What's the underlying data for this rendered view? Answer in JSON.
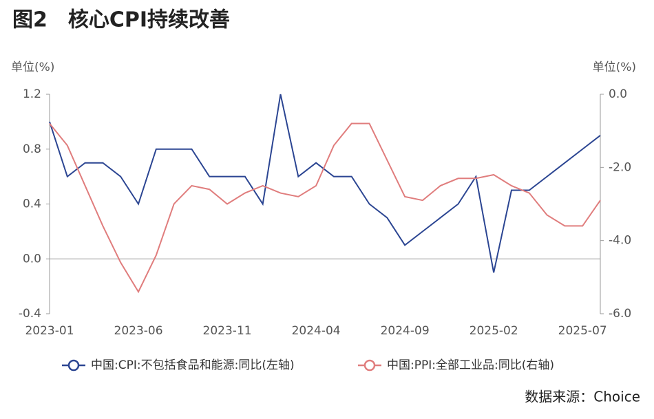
{
  "chart_data": {
    "type": "line",
    "title": "图2　核心CPI持续改善",
    "ylabel": "单位(%)",
    "y2label": "单位(%)",
    "source": "数据来源：Choice",
    "categories": [
      "2023-01",
      null,
      null,
      null,
      null,
      "2023-06",
      null,
      null,
      null,
      null,
      "2023-11",
      null,
      null,
      null,
      null,
      "2024-04",
      null,
      null,
      null,
      null,
      "2024-09",
      null,
      null,
      null,
      null,
      "2025-02",
      null,
      null,
      null,
      null,
      "2025-07",
      null
    ],
    "series": [
      {
        "name": "中国:CPI:不包括食品和能源:同比(左轴)",
        "color": "#2b4592",
        "values": [
          1.0,
          0.6,
          0.7,
          0.7,
          0.6,
          0.4,
          0.8,
          0.8,
          0.8,
          0.6,
          0.6,
          0.6,
          0.4,
          1.2,
          0.6,
          0.7,
          0.6,
          0.6,
          0.4,
          0.3,
          0.1,
          0.2,
          0.3,
          0.4,
          0.6,
          -0.1,
          0.5,
          0.5,
          0.6,
          0.7,
          0.8,
          0.9
        ]
      },
      {
        "name": "中国:PPI:全部工业品:同比(右轴)",
        "color": "#e07d7d",
        "axis": "y2",
        "values": [
          -0.8,
          -1.4,
          -2.5,
          -3.6,
          -4.6,
          -5.4,
          -4.4,
          -3.0,
          -2.5,
          -2.6,
          -3.0,
          -2.7,
          -2.5,
          -2.7,
          -2.8,
          -2.5,
          -1.4,
          -0.8,
          -0.8,
          -1.8,
          -2.8,
          -2.9,
          -2.5,
          -2.3,
          -2.3,
          -2.2,
          -2.5,
          -2.7,
          -3.3,
          -3.6,
          -3.6,
          -2.9
        ]
      }
    ],
    "ylim": [
      -0.4,
      1.2
    ],
    "yticks": [
      -0.4,
      {
        "value": 0,
        "label": "0.0"
      },
      0.4,
      0.8,
      1.2
    ],
    "y2lim": [
      -6,
      0
    ],
    "y2ticks": [
      {
        "value": -6,
        "label": "-6.0"
      },
      {
        "value": -4,
        "label": "-4.0"
      },
      {
        "value": -2,
        "label": "-2.0"
      },
      {
        "value": 0,
        "label": "0.0"
      }
    ],
    "legend": "bottom"
  }
}
